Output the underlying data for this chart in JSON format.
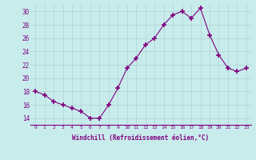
{
  "x": [
    0,
    1,
    2,
    3,
    4,
    5,
    6,
    7,
    8,
    9,
    10,
    11,
    12,
    13,
    14,
    15,
    16,
    17,
    18,
    19,
    20,
    21,
    22,
    23
  ],
  "y": [
    18,
    17.5,
    16.5,
    16,
    15.5,
    15,
    14,
    14,
    16,
    18.5,
    21.5,
    23,
    25,
    26,
    28,
    29.5,
    30,
    29,
    30.5,
    26.5,
    23.5,
    21.5,
    21,
    21.5
  ],
  "line_color": "#800080",
  "marker": "+",
  "marker_size": 4,
  "bg_color": "#c8ecec",
  "grid_color": "#b0d0d0",
  "xlabel": "Windchill (Refroidissement éolien,°C)",
  "xlabel_color": "#800080",
  "tick_color": "#800080",
  "ylim": [
    13,
    31
  ],
  "xlim": [
    -0.5,
    23.5
  ],
  "yticks": [
    14,
    16,
    18,
    20,
    22,
    24,
    26,
    28,
    30
  ],
  "xticks": [
    0,
    1,
    2,
    3,
    4,
    5,
    6,
    7,
    8,
    9,
    10,
    11,
    12,
    13,
    14,
    15,
    16,
    17,
    18,
    19,
    20,
    21,
    22,
    23
  ],
  "xtick_labels": [
    "0",
    "1",
    "2",
    "3",
    "4",
    "5",
    "6",
    "7",
    "8",
    "9",
    "10",
    "11",
    "12",
    "13",
    "14",
    "15",
    "16",
    "17",
    "18",
    "19",
    "20",
    "21",
    "22",
    "23"
  ]
}
